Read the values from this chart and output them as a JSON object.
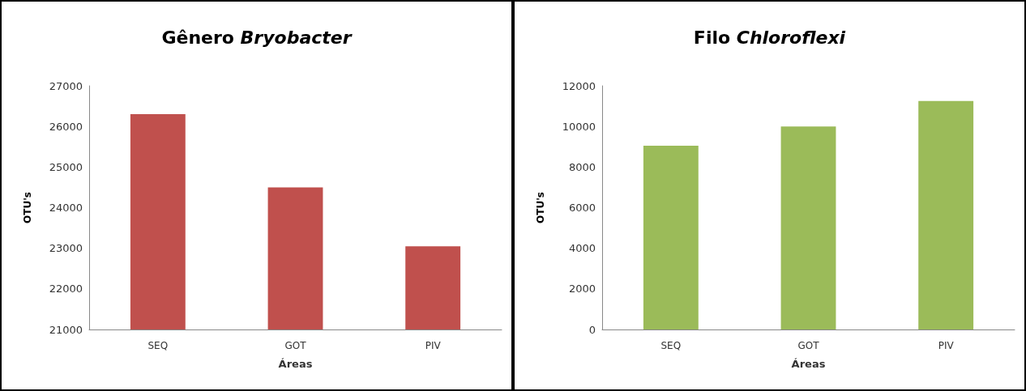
{
  "chart_data": [
    {
      "type": "bar",
      "title": "Gênero Bryobacter",
      "xlabel": "Áreas",
      "ylabel": "OTU's",
      "categories": [
        "SEQ",
        "GOT",
        "PIV"
      ],
      "values": [
        26300,
        24500,
        23050
      ],
      "color": "#c0504d",
      "ylim": [
        21000,
        27000
      ],
      "yticks": [
        21000,
        22000,
        23000,
        24000,
        25000,
        26000,
        27000
      ],
      "grid": false
    },
    {
      "type": "bar",
      "title": "Filo Chloroflexi",
      "xlabel": "Áreas",
      "ylabel": "OTU's",
      "categories": [
        "SEQ",
        "GOT",
        "PIV"
      ],
      "values": [
        9050,
        10000,
        11250
      ],
      "color": "#9bbb59",
      "ylim": [
        0,
        12000
      ],
      "yticks": [
        0,
        2000,
        4000,
        6000,
        8000,
        10000,
        12000
      ],
      "grid": false
    }
  ]
}
